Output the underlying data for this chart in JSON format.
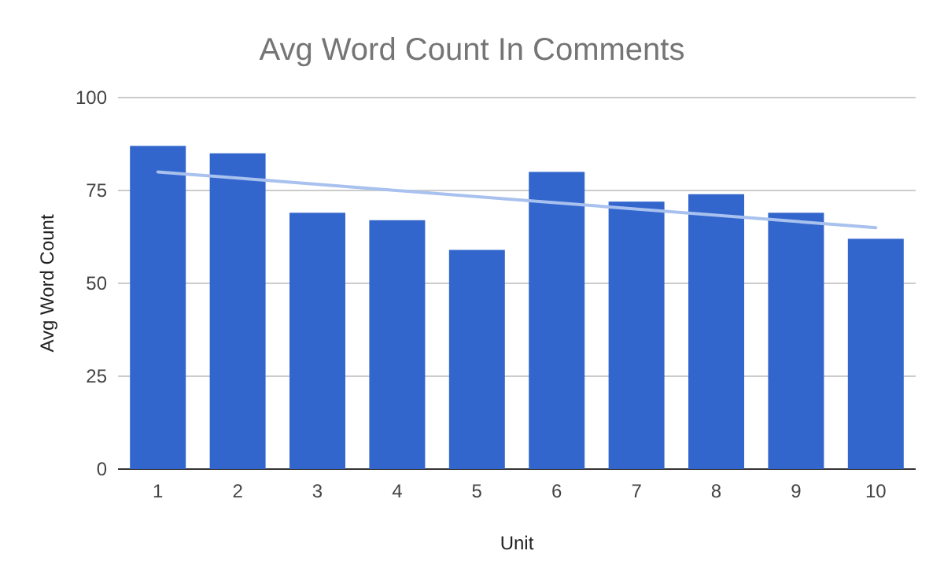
{
  "chart_data": {
    "type": "bar",
    "title": "Avg Word Count In Comments",
    "xlabel": "Unit",
    "ylabel": "Avg Word Count",
    "categories": [
      "1",
      "2",
      "3",
      "4",
      "5",
      "6",
      "7",
      "8",
      "9",
      "10"
    ],
    "series": [
      {
        "color": "#3366cc",
        "values": [
          87,
          85,
          69,
          67,
          59,
          80,
          72,
          74,
          69,
          62
        ]
      },
      {
        "type": "line",
        "color": "#a8c1ee",
        "x": [
          "1",
          "10"
        ],
        "values": [
          80,
          65
        ]
      }
    ],
    "ylim": [
      0,
      100
    ],
    "yticks": [
      0,
      25,
      50,
      75,
      100
    ],
    "grid": "y"
  }
}
